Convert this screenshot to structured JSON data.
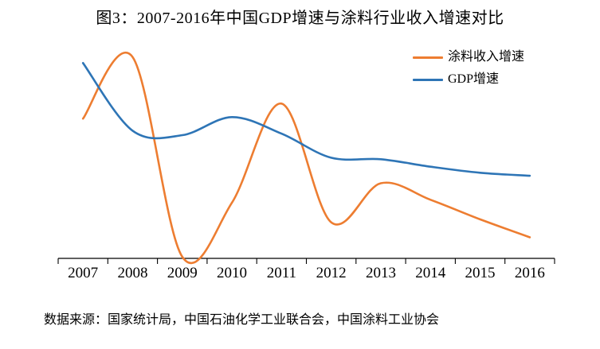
{
  "chart_data": {
    "type": "line",
    "smooth": true,
    "title": "图3：2007-2016年中国GDP增速与涂料行业收入增速对比",
    "categories": [
      "2007",
      "2008",
      "2009",
      "2010",
      "2011",
      "2012",
      "2013",
      "2014",
      "2015",
      "2016"
    ],
    "series": [
      {
        "name": "涂料收入增速",
        "color": "#ED7D31",
        "values": [
          10.5,
          14.6,
          1.3,
          4.9,
          11.5,
          3.6,
          6.2,
          5.1,
          3.8,
          2.6
        ]
      },
      {
        "name": "GDP增速",
        "color": "#2E75B6",
        "values": [
          14.2,
          9.7,
          9.4,
          10.6,
          9.5,
          7.9,
          7.8,
          7.3,
          6.9,
          6.7
        ]
      }
    ],
    "values_unit": "percent",
    "legend_position": "top-right",
    "grid": "off",
    "x_axis": {
      "labels_visible": true,
      "ticks": "category-boundaries"
    },
    "y_axis": {
      "labels_visible": false,
      "estimated_visible_range": [
        1.2,
        15.0
      ]
    },
    "axis_color": "#000000",
    "source_note": "数据来源：国家统计局，中国石油化学工业联合会，中国涂料工业协会"
  }
}
